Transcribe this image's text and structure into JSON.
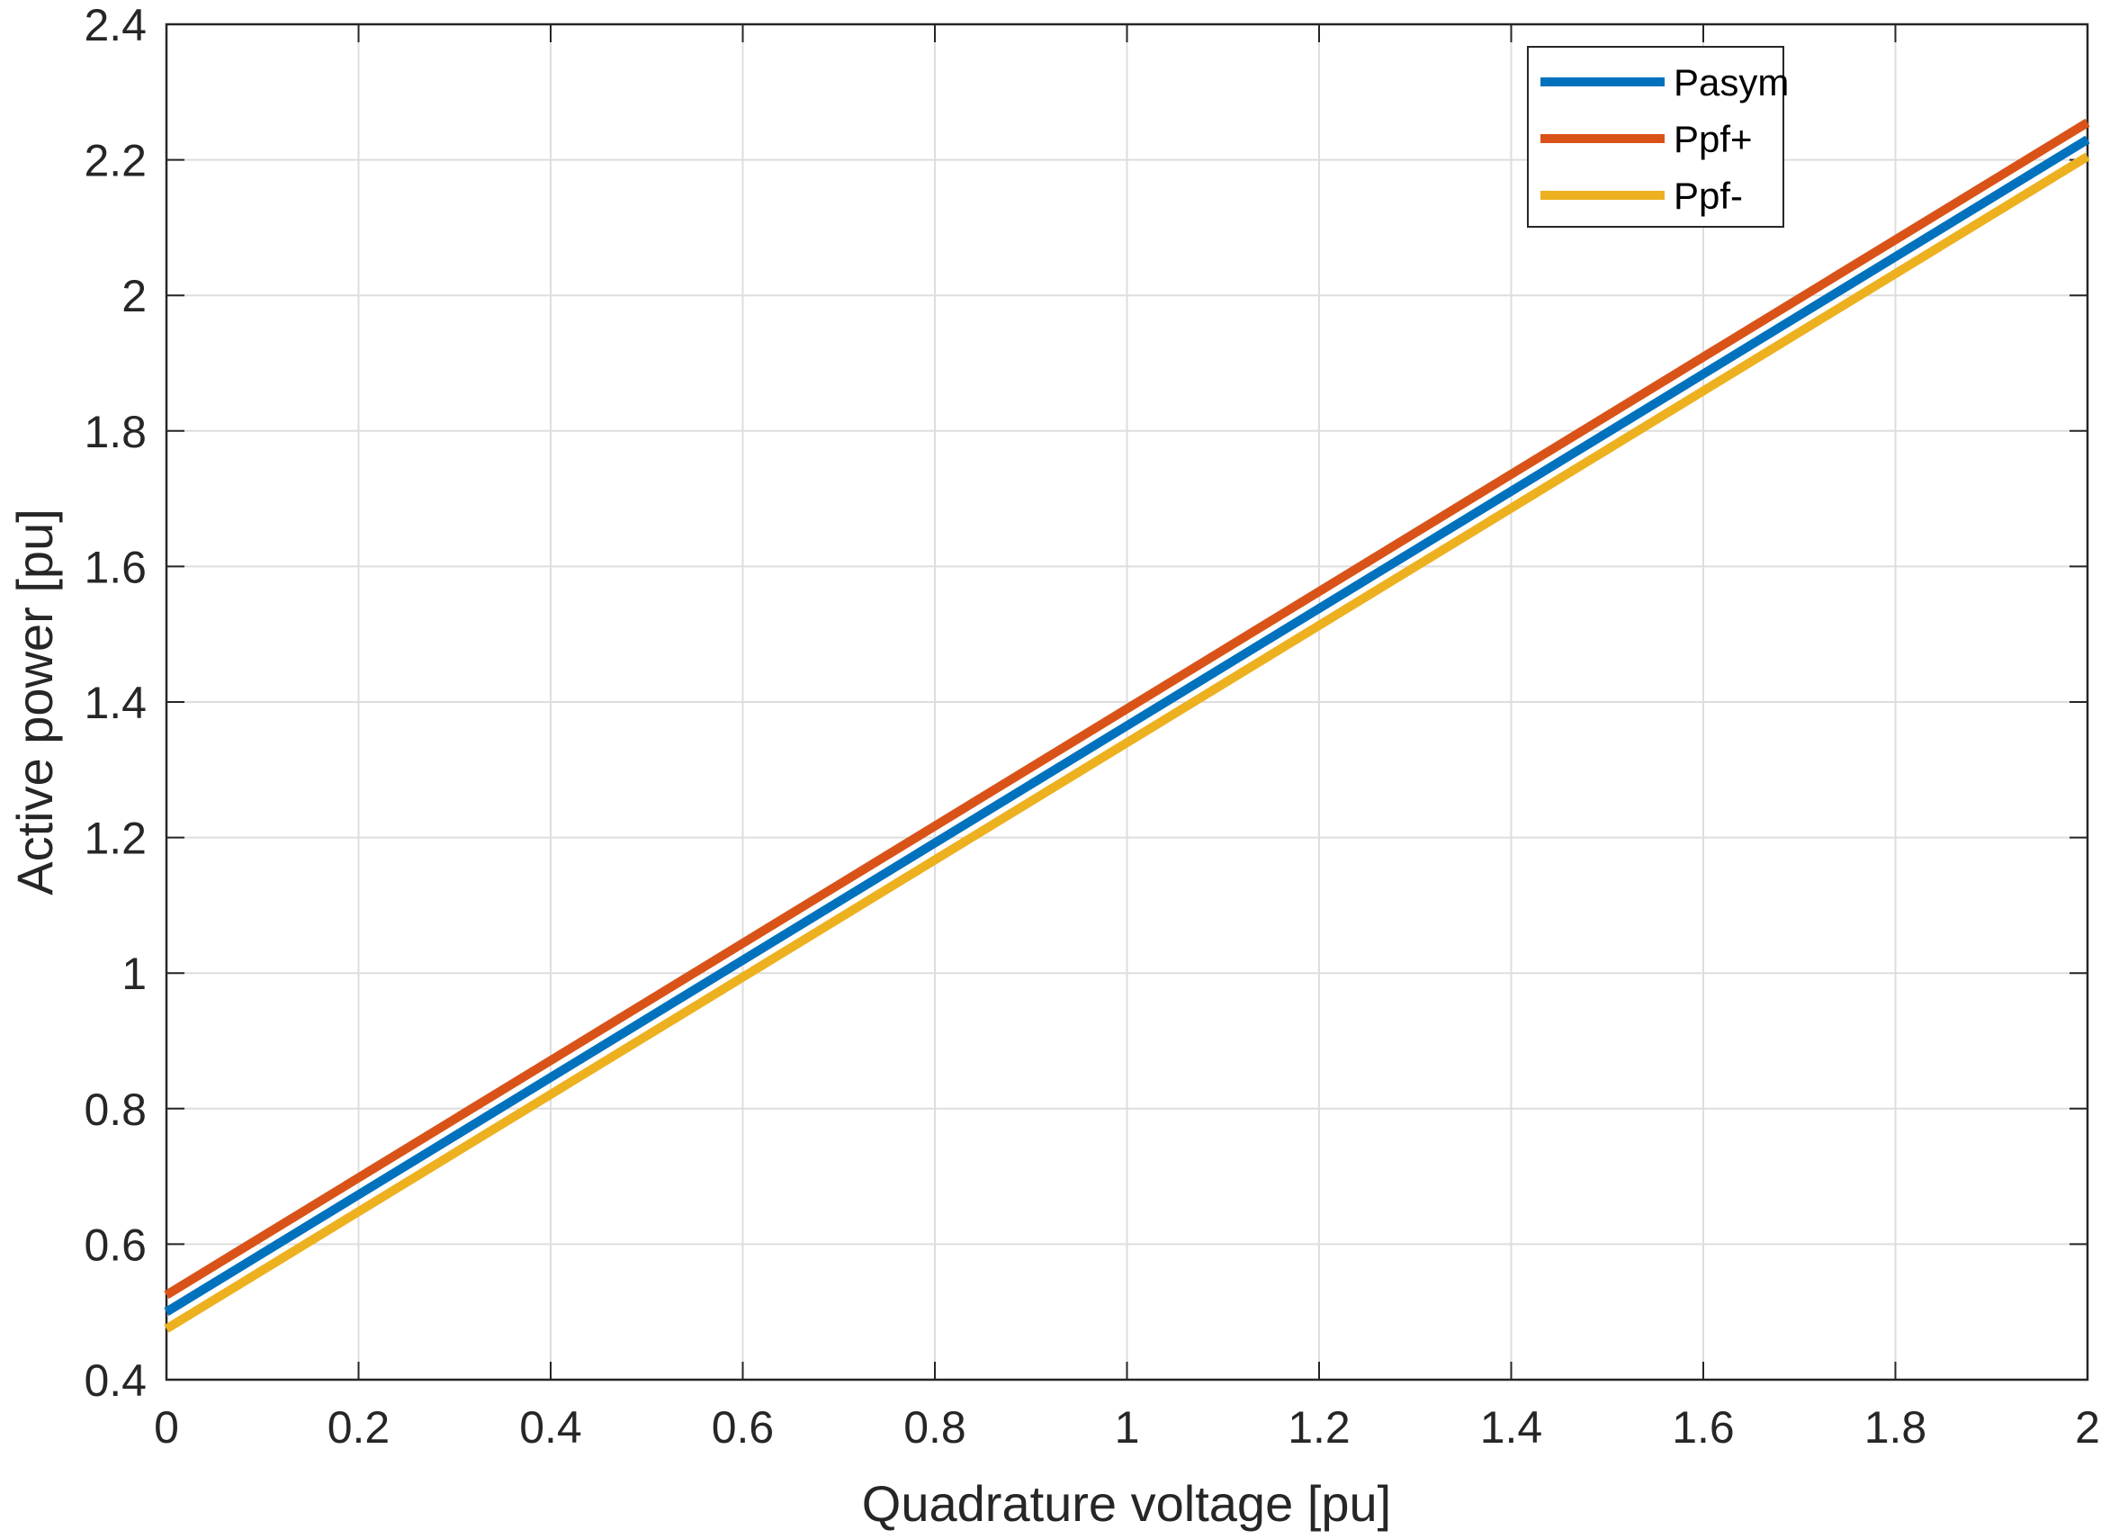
{
  "chart_data": {
    "type": "line",
    "title": "",
    "xlabel": "Quadrature voltage [pu]",
    "ylabel": "Active power [pu]",
    "xlim": [
      0,
      2
    ],
    "ylim": [
      0.4,
      2.4
    ],
    "xticks": [
      "0",
      "0.2",
      "0.4",
      "0.6",
      "0.8",
      "1",
      "1.2",
      "1.4",
      "1.6",
      "1.8",
      "2"
    ],
    "yticks": [
      "0.4",
      "0.6",
      "0.8",
      "1",
      "1.2",
      "1.4",
      "1.6",
      "1.8",
      "2",
      "2.2",
      "2.4"
    ],
    "grid": true,
    "legend_position": "top-right",
    "series": [
      {
        "name": "Pasym",
        "color": "#0072BD",
        "x": [
          0,
          2
        ],
        "y": [
          0.5,
          2.23
        ]
      },
      {
        "name": "Ppf+",
        "color": "#D95319",
        "x": [
          0,
          2
        ],
        "y": [
          0.525,
          2.255
        ]
      },
      {
        "name": "Ppf-",
        "color": "#EDB120",
        "x": [
          0,
          2
        ],
        "y": [
          0.475,
          2.205
        ]
      }
    ]
  }
}
